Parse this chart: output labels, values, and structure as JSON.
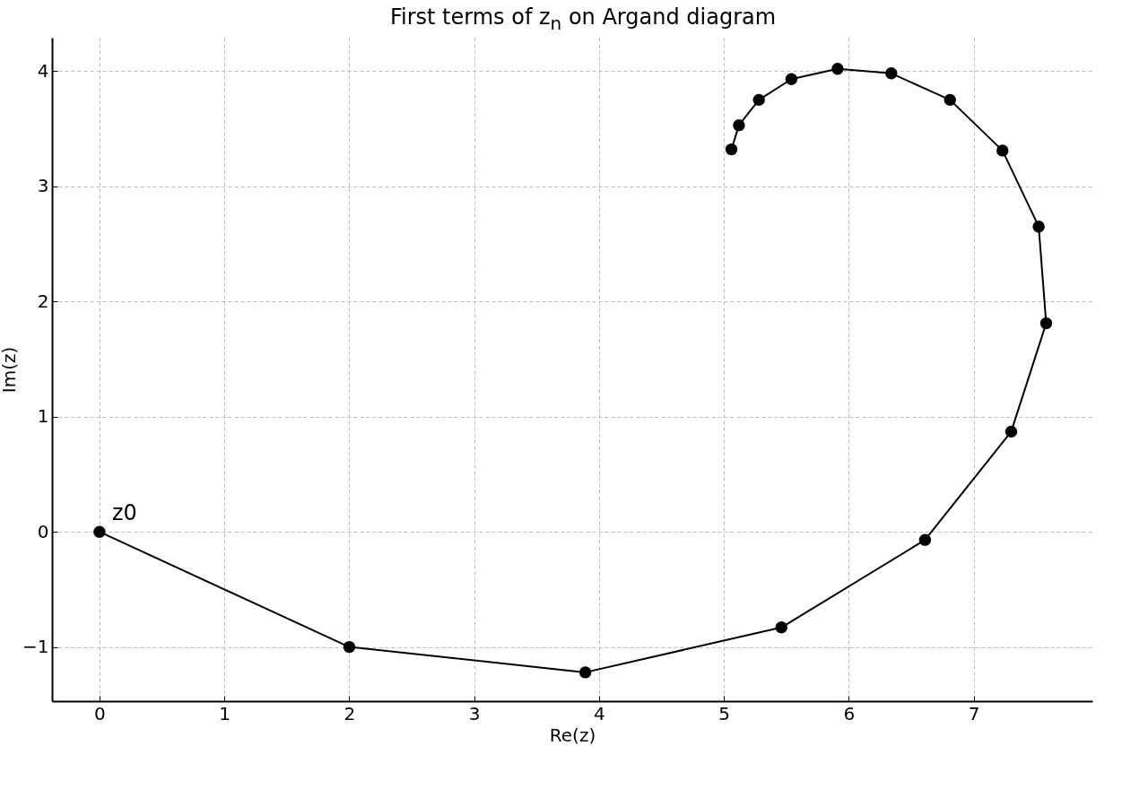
{
  "chart_data": {
    "type": "line",
    "title": "First terms of z$_{n}$ on Argand diagram",
    "xlabel": "Re(z)",
    "ylabel": "Im(z)",
    "x": [
      0,
      2,
      3.89,
      5.46,
      6.61,
      7.3,
      7.58,
      7.52,
      7.23,
      6.81,
      6.34,
      5.91,
      5.54,
      5.28,
      5.12,
      5.06
    ],
    "series": [
      {
        "color": "#000000",
        "values": [
          0,
          -1,
          -1.22,
          -0.83,
          -0.07,
          0.87,
          1.81,
          2.65,
          3.31,
          3.75,
          3.98,
          4.02,
          3.93,
          3.75,
          3.53,
          3.32
        ]
      }
    ],
    "xlim": [
      -0.38,
      7.95
    ],
    "ylim": [
      -1.47,
      4.29
    ],
    "xticks": [
      0,
      1,
      2,
      3,
      4,
      5,
      6,
      7
    ],
    "yticks": [
      {
        "value": -1,
        "label": "−1"
      },
      0,
      1,
      2,
      3,
      4
    ],
    "grid": true,
    "marker": "circle",
    "line_style": "solid",
    "annotations": [
      {
        "text": "z0",
        "x": 0,
        "y": 0
      }
    ]
  }
}
